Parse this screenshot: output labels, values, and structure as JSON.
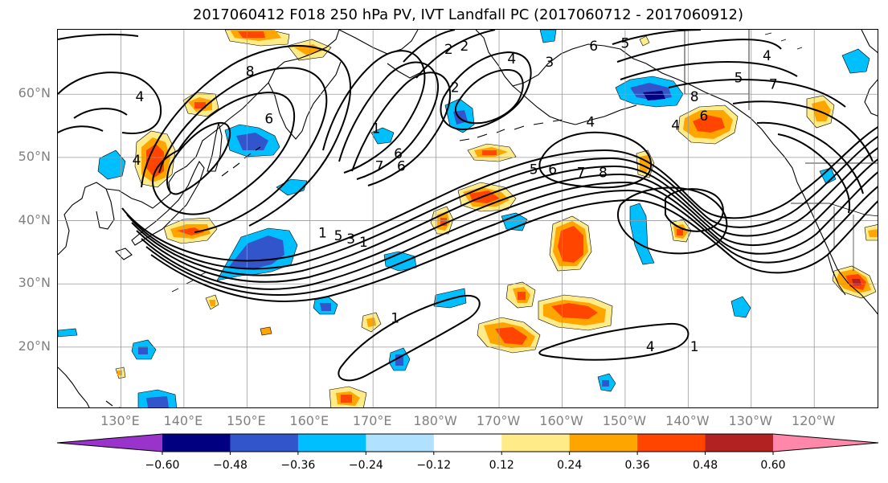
{
  "title": "2017060412 F018 250 hPa PV, IVT Landfall PC (2017060712 - 2017060912)",
  "lat_labels": [
    "60°N",
    "50°N",
    "40°N",
    "30°N",
    "20°N"
  ],
  "lat_values": [
    60,
    50,
    40,
    30,
    20
  ],
  "lon_labels": [
    "130°E",
    "140°E",
    "150°E",
    "160°E",
    "170°E",
    "180°W",
    "170°W",
    "160°W",
    "150°W",
    "140°W",
    "130°W",
    "120°W"
  ],
  "lon_values": [
    130,
    140,
    150,
    160,
    170,
    180,
    190,
    200,
    210,
    220,
    230,
    240
  ],
  "colorbar": {
    "tick_labels": [
      "−0.60",
      "−0.48",
      "−0.36",
      "−0.24",
      "−0.12",
      "0.12",
      "0.24",
      "0.36",
      "0.48",
      "0.60"
    ],
    "levels": [
      -0.6,
      -0.48,
      -0.36,
      -0.24,
      -0.12,
      0.12,
      0.24,
      0.36,
      0.48,
      0.6
    ],
    "colors": [
      "#9933CC",
      "#000080",
      "#3355CC",
      "#00BFFF",
      "#B0E2FF",
      "#FFFFFF",
      "#FFEB88",
      "#FFA500",
      "#FF4500",
      "#B22222",
      "#FF88AA"
    ],
    "extend": "both"
  },
  "contour_labels": [
    {
      "text": "8",
      "lon": 150.5,
      "lat": 63.5
    },
    {
      "text": "4",
      "lon": 133,
      "lat": 59.5
    },
    {
      "text": "6",
      "lon": 153.5,
      "lat": 56
    },
    {
      "text": "4",
      "lon": 132.5,
      "lat": 49.5
    },
    {
      "text": "1",
      "lon": 162,
      "lat": 38
    },
    {
      "text": "5",
      "lon": 164.5,
      "lat": 37.5
    },
    {
      "text": "3",
      "lon": 166.5,
      "lat": 37
    },
    {
      "text": "1",
      "lon": 168.5,
      "lat": 36.5
    },
    {
      "text": "2",
      "lon": 183,
      "lat": 61
    },
    {
      "text": "1",
      "lon": 170.5,
      "lat": 54.5
    },
    {
      "text": "2",
      "lon": 182,
      "lat": 67
    },
    {
      "text": "2",
      "lon": 184.5,
      "lat": 67.5
    },
    {
      "text": "4",
      "lon": 192,
      "lat": 65.5
    },
    {
      "text": "3",
      "lon": 198,
      "lat": 65
    },
    {
      "text": "6",
      "lon": 205,
      "lat": 67.5
    },
    {
      "text": "5",
      "lon": 210,
      "lat": 68
    },
    {
      "text": "4",
      "lon": 232.5,
      "lat": 66
    },
    {
      "text": "5",
      "lon": 228,
      "lat": 62.5
    },
    {
      "text": "7",
      "lon": 233.5,
      "lat": 61.5
    },
    {
      "text": "8",
      "lon": 221,
      "lat": 59.5
    },
    {
      "text": "4",
      "lon": 204.5,
      "lat": 55.5
    },
    {
      "text": "6",
      "lon": 222.5,
      "lat": 56.5
    },
    {
      "text": "4",
      "lon": 218,
      "lat": 55
    },
    {
      "text": "6",
      "lon": 174,
      "lat": 50.5
    },
    {
      "text": "7",
      "lon": 171,
      "lat": 48.5
    },
    {
      "text": "6",
      "lon": 174.5,
      "lat": 48.5
    },
    {
      "text": "5",
      "lon": 195.5,
      "lat": 48
    },
    {
      "text": "6",
      "lon": 198.5,
      "lat": 48
    },
    {
      "text": "7",
      "lon": 203,
      "lat": 47.5
    },
    {
      "text": "8",
      "lon": 206.5,
      "lat": 47.5
    },
    {
      "text": "1",
      "lon": 173.5,
      "lat": 24.5
    },
    {
      "text": "1",
      "lon": 221,
      "lat": 20
    },
    {
      "text": "4",
      "lon": 214,
      "lat": 20
    }
  ]
}
